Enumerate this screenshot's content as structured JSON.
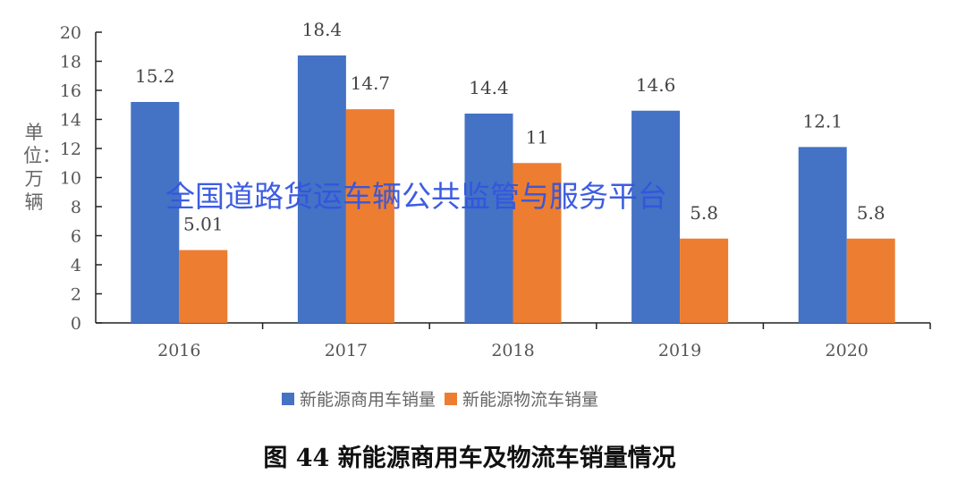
{
  "chart_data": {
    "type": "bar",
    "title": "图 44  新能源商用车及物流车销量情况",
    "ylabel": "单位：万辆",
    "xlabel": "",
    "categories": [
      "2016",
      "2017",
      "2018",
      "2019",
      "2020"
    ],
    "series": [
      {
        "name": "新能源商用车销量",
        "values": [
          15.2,
          18.4,
          14.4,
          14.6,
          12.1
        ],
        "labels": [
          "15.2",
          "18.4",
          "14.4",
          "14.6",
          "12.1"
        ],
        "color": "#4472c4"
      },
      {
        "name": "新能源物流车销量",
        "values": [
          5.01,
          14.7,
          11,
          5.8,
          5.8
        ],
        "labels": [
          "5.01",
          "14.7",
          "11",
          "5.8",
          "5.8"
        ],
        "color": "#ed7d31"
      }
    ],
    "ylim": [
      0,
      20
    ],
    "yticks": [
      "0",
      "2",
      "4",
      "6",
      "8",
      "10",
      "12",
      "14",
      "16",
      "18",
      "20"
    ],
    "grid": false,
    "legend_position": "bottom"
  },
  "watermark": "全国道路货运车辆公共监管与服务平台"
}
